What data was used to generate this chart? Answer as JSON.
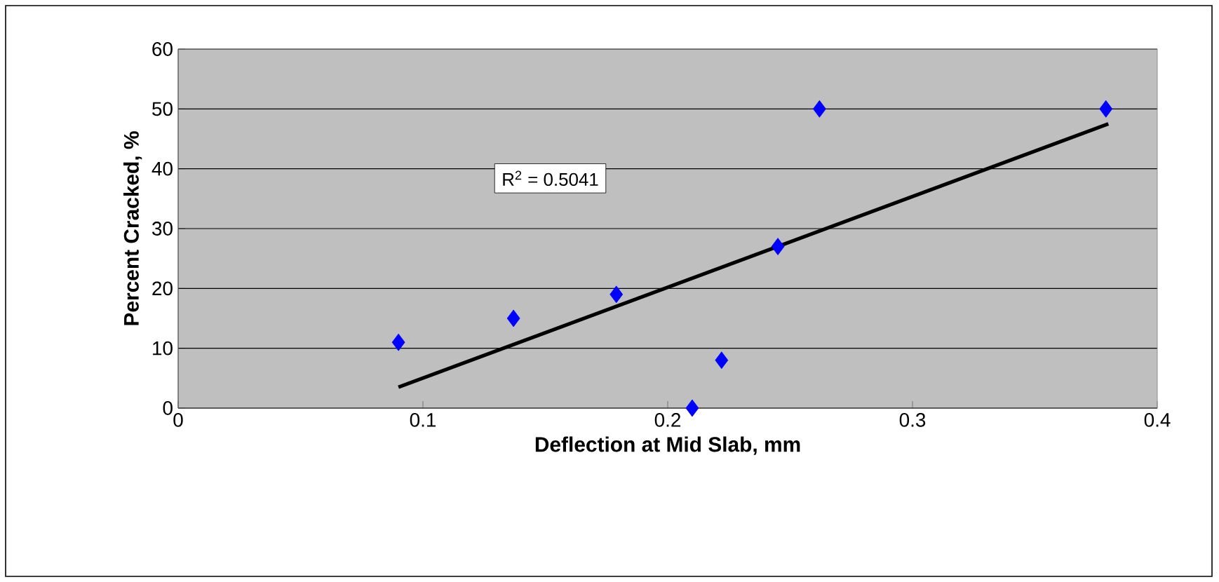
{
  "chart_data": {
    "type": "scatter",
    "xlabel": "Deflection at Mid Slab, mm",
    "ylabel": "Percent Cracked, %",
    "series": [
      {
        "color": "#0000ff",
        "marker": "diamond",
        "x": [
          0.09,
          0.137,
          0.179,
          0.21,
          0.222,
          0.245,
          0.262,
          0.379
        ],
        "values": [
          11,
          15,
          19,
          0,
          8,
          27,
          50,
          50
        ]
      },
      {
        "type": "line",
        "color": "#000000",
        "marker": "none",
        "x": [
          0.09,
          0.38
        ],
        "values": [
          3.5,
          47.5
        ]
      }
    ],
    "xlim": [
      0,
      0.4
    ],
    "xticks": [
      0,
      0.1,
      0.2,
      0.3,
      0.4
    ],
    "ylim": [
      0,
      60
    ],
    "yticks": [
      0,
      10,
      20,
      30,
      40,
      50,
      60
    ],
    "grid": "y",
    "annotations": [
      "R$^{2}$ = 0.5041"
    ]
  }
}
